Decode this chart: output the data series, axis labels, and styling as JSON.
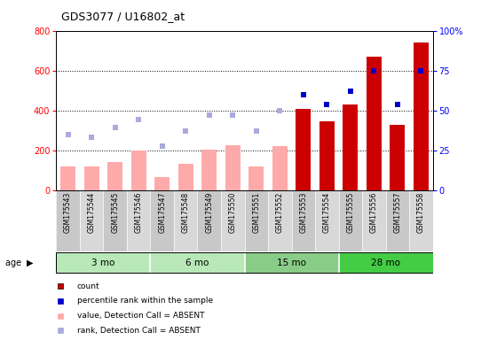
{
  "title": "GDS3077 / U16802_at",
  "samples": [
    "GSM175543",
    "GSM175544",
    "GSM175545",
    "GSM175546",
    "GSM175547",
    "GSM175548",
    "GSM175549",
    "GSM175550",
    "GSM175551",
    "GSM175552",
    "GSM175553",
    "GSM175554",
    "GSM175555",
    "GSM175556",
    "GSM175557",
    "GSM175558"
  ],
  "age_groups": [
    {
      "label": "3 mo",
      "start": 0,
      "end": 3,
      "color": "#aaddaa"
    },
    {
      "label": "6 mo",
      "start": 4,
      "end": 7,
      "color": "#aaddaa"
    },
    {
      "label": "15 mo",
      "start": 8,
      "end": 11,
      "color": "#88cc88"
    },
    {
      "label": "28 mo",
      "start": 12,
      "end": 15,
      "color": "#44cc44"
    }
  ],
  "count_values": [
    null,
    null,
    null,
    null,
    null,
    null,
    null,
    null,
    null,
    null,
    410,
    345,
    430,
    670,
    330,
    740
  ],
  "percentile_rank": [
    null,
    null,
    null,
    null,
    null,
    null,
    null,
    null,
    null,
    null,
    60,
    54,
    62,
    75,
    54,
    75
  ],
  "value_absent": [
    120,
    120,
    140,
    200,
    65,
    135,
    205,
    225,
    120,
    220,
    null,
    null,
    null,
    null,
    null,
    null
  ],
  "rank_absent": [
    280,
    265,
    315,
    355,
    220,
    295,
    375,
    375,
    295,
    400,
    null,
    null,
    null,
    null,
    null,
    null
  ],
  "ylim_left": [
    0,
    800
  ],
  "ylim_right": [
    0,
    100
  ],
  "yticks_left": [
    0,
    200,
    400,
    600,
    800
  ],
  "yticks_right": [
    0,
    25,
    50,
    75,
    100
  ],
  "ytick_labels_right": [
    "0",
    "25",
    "50",
    "75",
    "100%"
  ],
  "color_count": "#cc0000",
  "color_percentile": "#0000cc",
  "color_value_absent": "#ffaaaa",
  "color_rank_absent": "#aaaadd",
  "bar_width": 0.65,
  "marker_size": 5
}
